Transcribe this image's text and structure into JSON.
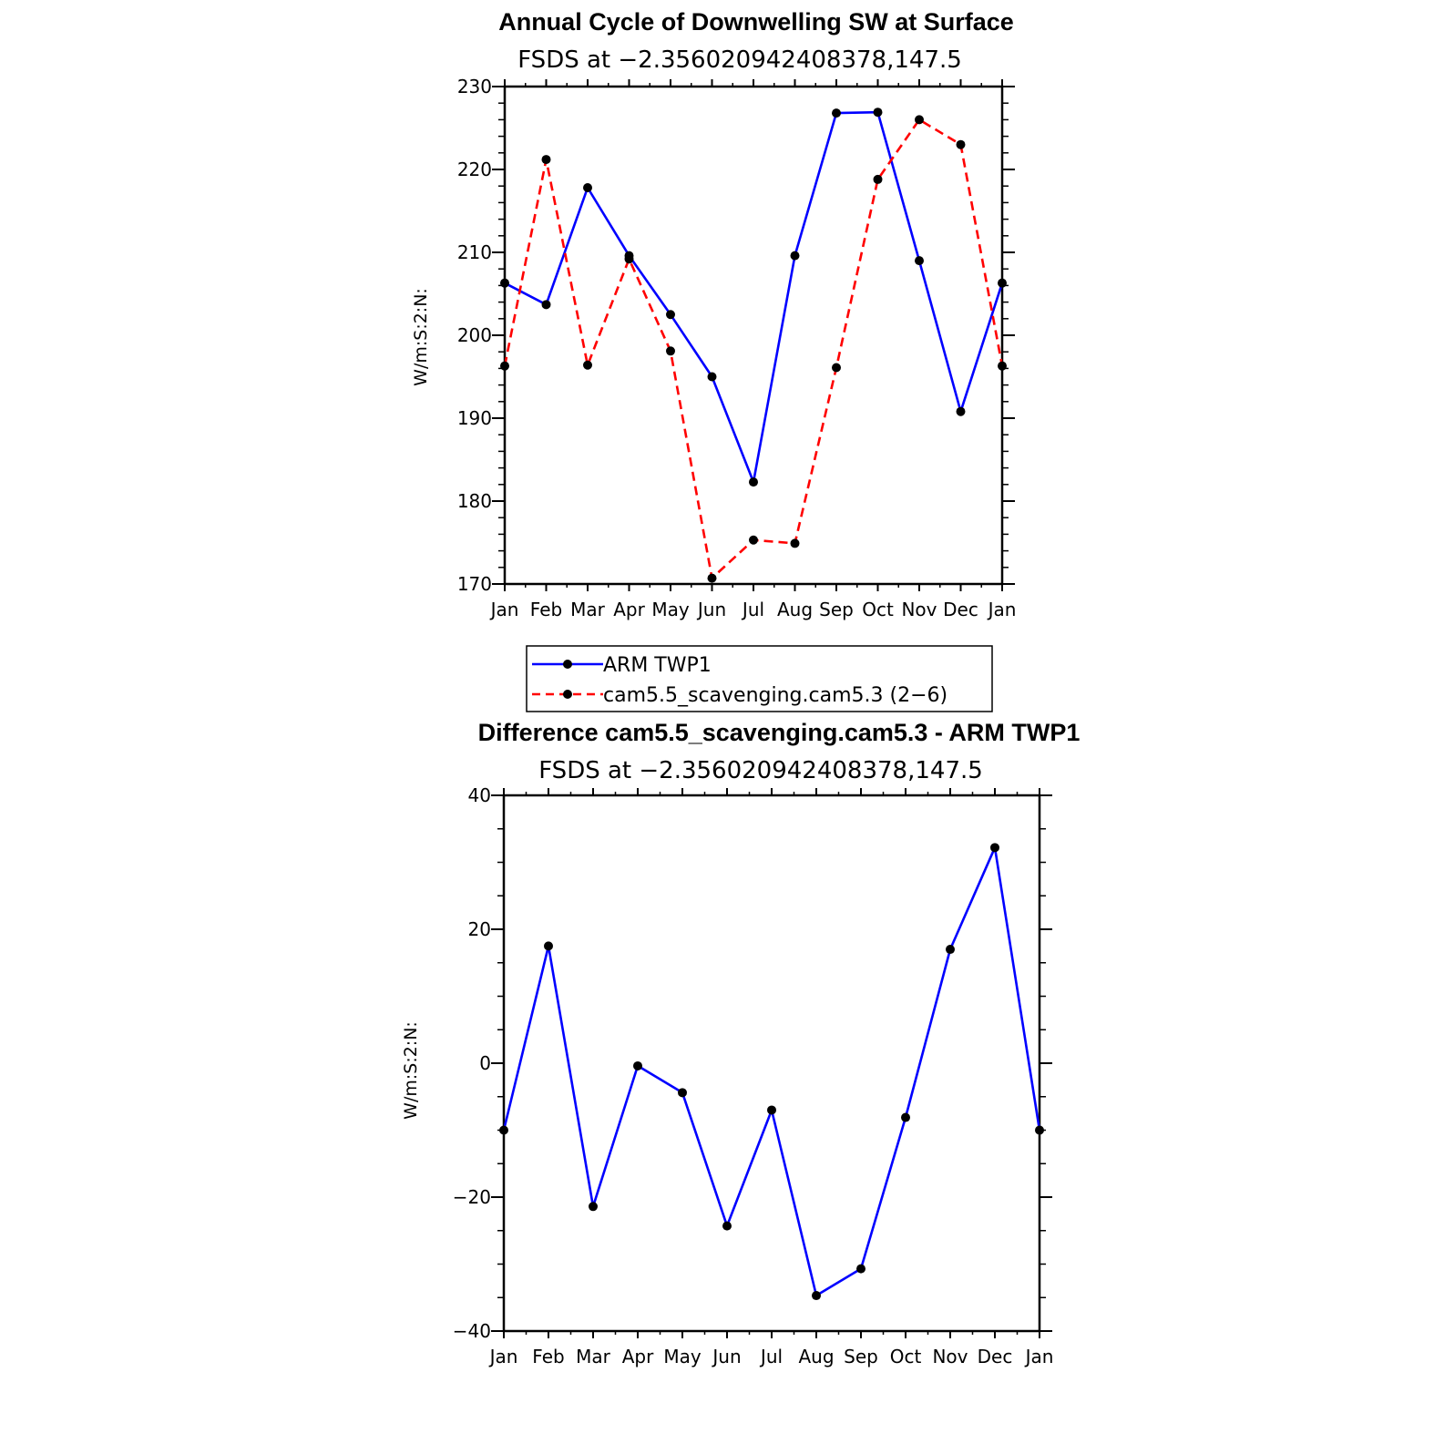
{
  "chart_data": [
    {
      "type": "line",
      "title": "Annual Cycle of Downwelling SW at Surface",
      "subtitle": "FSDS at −2.356020942408378,147.5",
      "ylabel": "W/m:S:2:N:",
      "xlabel": "",
      "categories": [
        "Jan",
        "Feb",
        "Mar",
        "Apr",
        "May",
        "Jun",
        "Jul",
        "Aug",
        "Sep",
        "Oct",
        "Nov",
        "Dec",
        "Jan"
      ],
      "yticks": [
        "170",
        "180",
        "190",
        "200",
        "210",
        "220",
        "230"
      ],
      "ylim": [
        170,
        230
      ],
      "series": [
        {
          "name": "ARM TWP1",
          "color": "#0000ff",
          "style": "solid",
          "values": [
            206.3,
            203.7,
            217.8,
            209.6,
            202.5,
            195.0,
            182.3,
            209.6,
            226.8,
            226.9,
            209.0,
            190.8,
            206.3
          ]
        },
        {
          "name": "cam5.5_scavenging.cam5.3 (2−6)",
          "color": "#ff0000",
          "style": "dashed",
          "values": [
            196.3,
            221.2,
            196.4,
            209.2,
            198.1,
            170.7,
            175.3,
            174.9,
            196.1,
            218.8,
            226.0,
            223.0,
            196.3
          ]
        }
      ],
      "legend": "bottom"
    },
    {
      "type": "line",
      "title": "Difference cam5.5_scavenging.cam5.3 - ARM TWP1",
      "subtitle": "FSDS at −2.356020942408378,147.5",
      "ylabel": "W/m:S:2:N:",
      "xlabel": "",
      "categories": [
        "Jan",
        "Feb",
        "Mar",
        "Apr",
        "May",
        "Jun",
        "Jul",
        "Aug",
        "Sep",
        "Oct",
        "Nov",
        "Dec",
        "Jan"
      ],
      "yticks": [
        "−40",
        "−20",
        "0",
        "20",
        "40"
      ],
      "ylim": [
        -40,
        40
      ],
      "series": [
        {
          "name": "",
          "color": "#0000ff",
          "style": "solid",
          "values": [
            -10.0,
            17.5,
            -21.4,
            -0.4,
            -4.4,
            -24.3,
            -7.0,
            -34.7,
            -30.7,
            -8.1,
            17.0,
            32.2,
            -10.0
          ]
        }
      ]
    }
  ]
}
